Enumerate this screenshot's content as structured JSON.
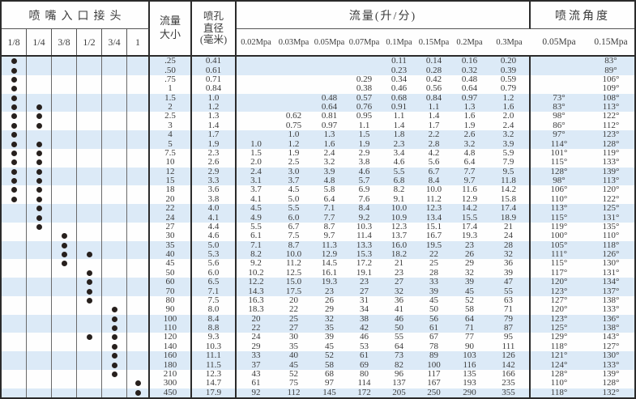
{
  "header": {
    "connector_group": "喷嘴入口接头",
    "connector_sizes": [
      "1/8",
      "1/4",
      "3/8",
      "1/2",
      "3/4",
      "1"
    ],
    "flow_size_label_line1": "流量",
    "flow_size_label_line2": "大小",
    "orifice_label_line1": "喷孔",
    "orifice_label_line2": "直径",
    "orifice_label_line3": "(毫米)",
    "flow_group": "流量(升/分)",
    "pressures": [
      "0.02Mpa",
      "0.03Mpa",
      "0.05Mpa",
      "0.07Mpa",
      "0.1Mpa",
      "0.15Mpa",
      "0.2Mpa",
      "0.3Mpa"
    ],
    "angle_group": "喷流角度",
    "angle_pressures": [
      "0.05Mpa",
      "0.15Mpa"
    ]
  },
  "colors": {
    "stripe": "#dceaf7",
    "border_heavy": "#2b2b2b",
    "border_thin": "#6a6a6a",
    "dot": "#27201d",
    "text": "#3b3b3b"
  },
  "rows": [
    {
      "size": ".25",
      "orifice": "0.41",
      "dots": [
        1,
        0,
        0,
        0,
        0,
        0
      ],
      "flows": [
        "",
        "",
        "",
        "",
        "0.11",
        "0.14",
        "0.16",
        "0.20"
      ],
      "angles": [
        "",
        "83°"
      ]
    },
    {
      "size": ".50",
      "orifice": "0.61",
      "dots": [
        1,
        0,
        0,
        0,
        0,
        0
      ],
      "flows": [
        "",
        "",
        "",
        "",
        "0.23",
        "0.28",
        "0.32",
        "0.39"
      ],
      "angles": [
        "",
        "89°"
      ]
    },
    {
      "size": ".75",
      "orifice": "0.71",
      "dots": [
        1,
        0,
        0,
        0,
        0,
        0
      ],
      "flows": [
        "",
        "",
        "",
        "0.29",
        "0.34",
        "0.42",
        "0.48",
        "0.59"
      ],
      "angles": [
        "",
        "106°"
      ]
    },
    {
      "size": "1",
      "orifice": "0.84",
      "dots": [
        1,
        0,
        0,
        0,
        0,
        0
      ],
      "flows": [
        "",
        "",
        "",
        "0.38",
        "0.46",
        "0.56",
        "0.64",
        "0.79"
      ],
      "angles": [
        "",
        "109°"
      ]
    },
    {
      "size": "1.5",
      "orifice": "1.0",
      "dots": [
        1,
        0,
        0,
        0,
        0,
        0
      ],
      "flows": [
        "",
        "",
        "0.48",
        "0.57",
        "0.68",
        "0.84",
        "0.97",
        "1.2"
      ],
      "angles": [
        "73°",
        "108°"
      ]
    },
    {
      "size": "2",
      "orifice": "1.2",
      "dots": [
        1,
        1,
        0,
        0,
        0,
        0
      ],
      "flows": [
        "",
        "",
        "0.64",
        "0.76",
        "0.91",
        "1.1",
        "1.3",
        "1.6"
      ],
      "angles": [
        "83°",
        "113°"
      ]
    },
    {
      "size": "2.5",
      "orifice": "1.3",
      "dots": [
        1,
        1,
        0,
        0,
        0,
        0
      ],
      "flows": [
        "",
        "0.62",
        "0.81",
        "0.95",
        "1.1",
        "1.4",
        "1.6",
        "2.0"
      ],
      "angles": [
        "98°",
        "122°"
      ]
    },
    {
      "size": "3",
      "orifice": "1.4",
      "dots": [
        1,
        1,
        0,
        0,
        0,
        0
      ],
      "flows": [
        "",
        "0.75",
        "0.97",
        "1.1",
        "1.4",
        "1.7",
        "1.9",
        "2.4"
      ],
      "angles": [
        "86°",
        "112°"
      ]
    },
    {
      "size": "4",
      "orifice": "1.7",
      "dots": [
        1,
        0,
        0,
        0,
        0,
        0
      ],
      "flows": [
        "",
        "1.0",
        "1.3",
        "1.5",
        "1.8",
        "2.2",
        "2.6",
        "3.2"
      ],
      "angles": [
        "97°",
        "123°"
      ]
    },
    {
      "size": "5",
      "orifice": "1.9",
      "dots": [
        1,
        1,
        0,
        0,
        0,
        0
      ],
      "flows": [
        "1.0",
        "1.2",
        "1.6",
        "1.9",
        "2.3",
        "2.8",
        "3.2",
        "3.9"
      ],
      "angles": [
        "114°",
        "128°"
      ]
    },
    {
      "size": "7.5",
      "orifice": "2.3",
      "dots": [
        1,
        1,
        0,
        0,
        0,
        0
      ],
      "flows": [
        "1.5",
        "1.9",
        "2.4",
        "2.9",
        "3.4",
        "4.2",
        "4.8",
        "5.9"
      ],
      "angles": [
        "101°",
        "119°"
      ]
    },
    {
      "size": "10",
      "orifice": "2.6",
      "dots": [
        1,
        1,
        0,
        0,
        0,
        0
      ],
      "flows": [
        "2.0",
        "2.5",
        "3.2",
        "3.8",
        "4.6",
        "5.6",
        "6.4",
        "7.9"
      ],
      "angles": [
        "115°",
        "133°"
      ]
    },
    {
      "size": "12",
      "orifice": "2.9",
      "dots": [
        1,
        1,
        0,
        0,
        0,
        0
      ],
      "flows": [
        "2.4",
        "3.0",
        "3.9",
        "4.6",
        "5.5",
        "6.7",
        "7.7",
        "9.5"
      ],
      "angles": [
        "128°",
        "139°"
      ]
    },
    {
      "size": "15",
      "orifice": "3.3",
      "dots": [
        1,
        1,
        0,
        0,
        0,
        0
      ],
      "flows": [
        "3.1",
        "3.7",
        "4.8",
        "5.7",
        "6.8",
        "8.4",
        "9.7",
        "11.8"
      ],
      "angles": [
        "98°",
        "113°"
      ]
    },
    {
      "size": "18",
      "orifice": "3.6",
      "dots": [
        1,
        1,
        0,
        0,
        0,
        0
      ],
      "flows": [
        "3.7",
        "4.5",
        "5.8",
        "6.9",
        "8.2",
        "10.0",
        "11.6",
        "14.2"
      ],
      "angles": [
        "106°",
        "120°"
      ]
    },
    {
      "size": "20",
      "orifice": "3.8",
      "dots": [
        1,
        1,
        0,
        0,
        0,
        0
      ],
      "flows": [
        "4.1",
        "5.0",
        "6.4",
        "7.6",
        "9.1",
        "11.2",
        "12.9",
        "15.8"
      ],
      "angles": [
        "110°",
        "122°"
      ]
    },
    {
      "size": "22",
      "orifice": "4.0",
      "dots": [
        0,
        1,
        0,
        0,
        0,
        0
      ],
      "flows": [
        "4.5",
        "5.5",
        "7.1",
        "8.4",
        "10.0",
        "12.3",
        "14.2",
        "17.4"
      ],
      "angles": [
        "113°",
        "125°"
      ]
    },
    {
      "size": "24",
      "orifice": "4.1",
      "dots": [
        0,
        1,
        0,
        0,
        0,
        0
      ],
      "flows": [
        "4.9",
        "6.0",
        "7.7",
        "9.2",
        "10.9",
        "13.4",
        "15.5",
        "18.9"
      ],
      "angles": [
        "115°",
        "131°"
      ]
    },
    {
      "size": "27",
      "orifice": "4.4",
      "dots": [
        0,
        1,
        0,
        0,
        0,
        0
      ],
      "flows": [
        "5.5",
        "6.7",
        "8.7",
        "10.3",
        "12.3",
        "15.1",
        "17.4",
        "21"
      ],
      "angles": [
        "119°",
        "135°"
      ]
    },
    {
      "size": "30",
      "orifice": "4.6",
      "dots": [
        0,
        0,
        1,
        0,
        0,
        0
      ],
      "flows": [
        "6.1",
        "7.5",
        "9.7",
        "11.4",
        "13.7",
        "16.7",
        "19.3",
        "24"
      ],
      "angles": [
        "100°",
        "110°"
      ]
    },
    {
      "size": "35",
      "orifice": "5.0",
      "dots": [
        0,
        0,
        1,
        0,
        0,
        0
      ],
      "flows": [
        "7.1",
        "8.7",
        "11.3",
        "13.3",
        "16.0",
        "19.5",
        "23",
        "28"
      ],
      "angles": [
        "105°",
        "118°"
      ]
    },
    {
      "size": "40",
      "orifice": "5.3",
      "dots": [
        0,
        0,
        1,
        1,
        0,
        0
      ],
      "flows": [
        "8.2",
        "10.0",
        "12.9",
        "15.3",
        "18.2",
        "22",
        "26",
        "32"
      ],
      "angles": [
        "111°",
        "126°"
      ]
    },
    {
      "size": "45",
      "orifice": "5.6",
      "dots": [
        0,
        0,
        1,
        0,
        0,
        0
      ],
      "flows": [
        "9.2",
        "11.2",
        "14.5",
        "17.2",
        "21",
        "25",
        "29",
        "36"
      ],
      "angles": [
        "115°",
        "130°"
      ]
    },
    {
      "size": "50",
      "orifice": "6.0",
      "dots": [
        0,
        0,
        0,
        1,
        0,
        0
      ],
      "flows": [
        "10.2",
        "12.5",
        "16.1",
        "19.1",
        "23",
        "28",
        "32",
        "39"
      ],
      "angles": [
        "117°",
        "131°"
      ]
    },
    {
      "size": "60",
      "orifice": "6.5",
      "dots": [
        0,
        0,
        0,
        1,
        0,
        0
      ],
      "flows": [
        "12.2",
        "15.0",
        "19.3",
        "23",
        "27",
        "33",
        "39",
        "47"
      ],
      "angles": [
        "120°",
        "134°"
      ]
    },
    {
      "size": "70",
      "orifice": "7.1",
      "dots": [
        0,
        0,
        0,
        1,
        0,
        0
      ],
      "flows": [
        "14.3",
        "17.5",
        "23",
        "27",
        "32",
        "39",
        "45",
        "55"
      ],
      "angles": [
        "123°",
        "137°"
      ]
    },
    {
      "size": "80",
      "orifice": "7.5",
      "dots": [
        0,
        0,
        0,
        1,
        0,
        0
      ],
      "flows": [
        "16.3",
        "20",
        "26",
        "31",
        "36",
        "45",
        "52",
        "63"
      ],
      "angles": [
        "127°",
        "138°"
      ]
    },
    {
      "size": "90",
      "orifice": "8.0",
      "dots": [
        0,
        0,
        0,
        0,
        1,
        0
      ],
      "flows": [
        "18.3",
        "22",
        "29",
        "34",
        "41",
        "50",
        "58",
        "71"
      ],
      "angles": [
        "120°",
        "133°"
      ]
    },
    {
      "size": "100",
      "orifice": "8.4",
      "dots": [
        0,
        0,
        0,
        0,
        1,
        0
      ],
      "flows": [
        "20",
        "25",
        "32",
        "38",
        "46",
        "56",
        "64",
        "79"
      ],
      "angles": [
        "123°",
        "136°"
      ]
    },
    {
      "size": "110",
      "orifice": "8.8",
      "dots": [
        0,
        0,
        0,
        0,
        1,
        0
      ],
      "flows": [
        "22",
        "27",
        "35",
        "42",
        "50",
        "61",
        "71",
        "87"
      ],
      "angles": [
        "125°",
        "138°"
      ]
    },
    {
      "size": "120",
      "orifice": "9.3",
      "dots": [
        0,
        0,
        0,
        1,
        1,
        0
      ],
      "flows": [
        "24",
        "30",
        "39",
        "46",
        "55",
        "67",
        "77",
        "95"
      ],
      "angles": [
        "129°",
        "143°"
      ]
    },
    {
      "size": "140",
      "orifice": "10.3",
      "dots": [
        0,
        0,
        0,
        0,
        1,
        0
      ],
      "flows": [
        "29",
        "35",
        "45",
        "53",
        "64",
        "78",
        "90",
        "111"
      ],
      "angles": [
        "118°",
        "127°"
      ]
    },
    {
      "size": "160",
      "orifice": "11.1",
      "dots": [
        0,
        0,
        0,
        0,
        1,
        0
      ],
      "flows": [
        "33",
        "40",
        "52",
        "61",
        "73",
        "89",
        "103",
        "126"
      ],
      "angles": [
        "121°",
        "130°"
      ]
    },
    {
      "size": "180",
      "orifice": "11.5",
      "dots": [
        0,
        0,
        0,
        0,
        1,
        0
      ],
      "flows": [
        "37",
        "45",
        "58",
        "69",
        "82",
        "100",
        "116",
        "142"
      ],
      "angles": [
        "124°",
        "133°"
      ]
    },
    {
      "size": "210",
      "orifice": "12.3",
      "dots": [
        0,
        0,
        0,
        0,
        1,
        0
      ],
      "flows": [
        "43",
        "52",
        "68",
        "80",
        "96",
        "117",
        "135",
        "166"
      ],
      "angles": [
        "128°",
        "139°"
      ]
    },
    {
      "size": "300",
      "orifice": "14.7",
      "dots": [
        0,
        0,
        0,
        0,
        0,
        1
      ],
      "flows": [
        "61",
        "75",
        "97",
        "114",
        "137",
        "167",
        "193",
        "235"
      ],
      "angles": [
        "110°",
        "128°"
      ]
    },
    {
      "size": "450",
      "orifice": "17.9",
      "dots": [
        0,
        0,
        0,
        0,
        0,
        1
      ],
      "flows": [
        "92",
        "112",
        "145",
        "172",
        "205",
        "250",
        "290",
        "355"
      ],
      "angles": [
        "118°",
        "132°"
      ]
    }
  ]
}
